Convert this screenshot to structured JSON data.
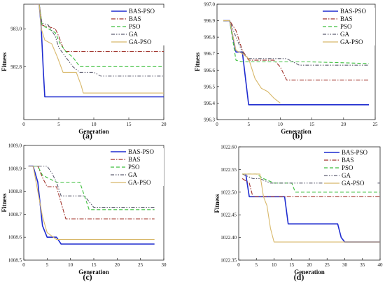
{
  "series_names": [
    "BAS-PSO",
    "BAS",
    "PSO",
    "GA",
    "GA-PSO"
  ],
  "series_styles": [
    {
      "name": "BAS-PSO",
      "color": "#1f2ccf",
      "dash": "",
      "width": 1.6
    },
    {
      "name": "BAS",
      "color": "#a0322a",
      "dash": "6,2,1.5,2",
      "width": 1.1
    },
    {
      "name": "PSO",
      "color": "#3dbf3d",
      "dash": "5,3",
      "width": 1.1
    },
    {
      "name": "GA",
      "color": "#5e5e70",
      "dash": "5,2,1.5,2,1.5,2",
      "width": 1.1
    },
    {
      "name": "GA-PSO",
      "color": "#d8b86a",
      "dash": "",
      "width": 1.1
    }
  ],
  "chart_data": [
    {
      "type": "line",
      "label": "(a)",
      "xlabel": "Generation",
      "ylabel": "Fitness",
      "xlim": [
        0,
        20
      ],
      "ylim": [
        982.52,
        983.13
      ],
      "xticks": [
        0,
        5,
        10,
        15,
        20
      ],
      "yticks": [
        {
          "v": 983.0,
          "t": "983.0"
        },
        {
          "v": 982.8,
          "t": "982.8"
        }
      ],
      "legend": "top-right",
      "series": [
        {
          "name": "BAS-PSO",
          "points": [
            [
              1.5,
              983.13
            ],
            [
              2.2,
              983.13
            ],
            [
              2.5,
              983.0
            ],
            [
              2.8,
              982.77
            ],
            [
              3.0,
              982.64
            ],
            [
              20,
              982.64
            ]
          ]
        },
        {
          "name": "BAS",
          "points": [
            [
              1.5,
              983.13
            ],
            [
              2.2,
              983.13
            ],
            [
              2.6,
              983.02
            ],
            [
              3.6,
              983.01
            ],
            [
              4.5,
              983.0
            ],
            [
              5.0,
              982.96
            ],
            [
              5.6,
              982.9
            ],
            [
              6.0,
              982.88
            ],
            [
              20,
              982.88
            ]
          ]
        },
        {
          "name": "PSO",
          "points": [
            [
              1.5,
              983.13
            ],
            [
              2.2,
              983.13
            ],
            [
              2.6,
              983.02
            ],
            [
              3.5,
              983.0
            ],
            [
              4.5,
              982.98
            ],
            [
              5.2,
              982.92
            ],
            [
              6.0,
              982.88
            ],
            [
              7.0,
              982.85
            ],
            [
              8.0,
              982.8
            ],
            [
              20,
              982.8
            ]
          ]
        },
        {
          "name": "GA",
          "points": [
            [
              1.5,
              983.13
            ],
            [
              2.2,
              983.13
            ],
            [
              2.6,
              983.03
            ],
            [
              3.5,
              983.02
            ],
            [
              4.5,
              982.96
            ],
            [
              5.0,
              982.9
            ],
            [
              5.8,
              982.86
            ],
            [
              7.0,
              982.8
            ],
            [
              8.0,
              982.77
            ],
            [
              10.0,
              982.77
            ],
            [
              11.0,
              982.75
            ],
            [
              20,
              982.75
            ]
          ]
        },
        {
          "name": "GA-PSO",
          "points": [
            [
              1.5,
              983.13
            ],
            [
              2.2,
              983.13
            ],
            [
              2.5,
              983.0
            ],
            [
              3.0,
              982.94
            ],
            [
              4.0,
              982.92
            ],
            [
              4.8,
              982.85
            ],
            [
              5.6,
              982.77
            ],
            [
              7.5,
              982.77
            ],
            [
              8.2,
              982.7
            ],
            [
              8.5,
              982.66
            ],
            [
              20,
              982.66
            ]
          ]
        }
      ]
    },
    {
      "type": "line",
      "label": "(b)",
      "xlabel": "Generation",
      "ylabel": "Fitness",
      "xlim": [
        0,
        25
      ],
      "ylim": [
        996.3,
        997.0
      ],
      "xticks": [
        0,
        5,
        10,
        15,
        20,
        25
      ],
      "yticks": [
        {
          "v": 996.3,
          "t": "996.3"
        },
        {
          "v": 996.4,
          "t": "996.4"
        },
        {
          "v": 996.5,
          "t": "996.5"
        },
        {
          "v": 996.6,
          "t": "996.6"
        },
        {
          "v": 996.7,
          "t": "996.7"
        },
        {
          "v": 996.8,
          "t": "996.8"
        },
        {
          "v": 996.9,
          "t": "996.9"
        },
        {
          "v": 997.0,
          "t": "997.0"
        }
      ],
      "legend": "top-right",
      "series": [
        {
          "name": "BAS-PSO",
          "points": [
            [
              1,
              996.9
            ],
            [
              2,
              996.9
            ],
            [
              3,
              996.71
            ],
            [
              4,
              996.71
            ],
            [
              5,
              996.39
            ],
            [
              24,
              996.39
            ]
          ]
        },
        {
          "name": "BAS",
          "points": [
            [
              1,
              996.9
            ],
            [
              2,
              996.9
            ],
            [
              3,
              996.84
            ],
            [
              4,
              996.72
            ],
            [
              5,
              996.66
            ],
            [
              9,
              996.66
            ],
            [
              10,
              996.62
            ],
            [
              11,
              996.54
            ],
            [
              24,
              996.54
            ]
          ]
        },
        {
          "name": "PSO",
          "points": [
            [
              1,
              996.9
            ],
            [
              2,
              996.9
            ],
            [
              3,
              996.66
            ],
            [
              4,
              996.65
            ],
            [
              11,
              996.65
            ],
            [
              15,
              996.65
            ],
            [
              24,
              996.64
            ]
          ]
        },
        {
          "name": "GA",
          "points": [
            [
              1,
              996.9
            ],
            [
              2,
              996.9
            ],
            [
              3,
              996.8
            ],
            [
              4,
              996.71
            ],
            [
              5,
              996.67
            ],
            [
              11,
              996.67
            ],
            [
              13,
              996.63
            ],
            [
              24,
              996.63
            ]
          ]
        },
        {
          "name": "GA-PSO",
          "points": [
            [
              1,
              996.9
            ],
            [
              2,
              996.9
            ],
            [
              3,
              996.72
            ],
            [
              4,
              996.7
            ],
            [
              5,
              996.67
            ],
            [
              6,
              996.55
            ],
            [
              7,
              996.49
            ],
            [
              8,
              996.47
            ],
            [
              9,
              996.43
            ],
            [
              10,
              996.4
            ]
          ]
        }
      ]
    },
    {
      "type": "line",
      "label": "(c)",
      "xlabel": "Generation",
      "ylabel": "Fitness",
      "xlim": [
        0,
        30
      ],
      "ylim": [
        1008.5,
        1009.0
      ],
      "xticks": [
        0,
        5,
        10,
        15,
        20,
        25,
        30
      ],
      "yticks": [
        {
          "v": 1008.5,
          "t": "1008.5"
        },
        {
          "v": 1008.6,
          "t": "1008.6"
        },
        {
          "v": 1008.7,
          "t": "1008.7"
        },
        {
          "v": 1008.8,
          "t": "1008.8"
        },
        {
          "v": 1008.9,
          "t": "1008.9"
        },
        {
          "v": 1009.0,
          "t": "1009.0"
        }
      ],
      "legend": "top-right",
      "series": [
        {
          "name": "BAS-PSO",
          "points": [
            [
              1,
              1008.91
            ],
            [
              2,
              1008.91
            ],
            [
              3,
              1008.84
            ],
            [
              4,
              1008.65
            ],
            [
              5,
              1008.6
            ],
            [
              7,
              1008.6
            ],
            [
              8,
              1008.57
            ],
            [
              28,
              1008.57
            ]
          ]
        },
        {
          "name": "BAS",
          "points": [
            [
              1,
              1008.91
            ],
            [
              3,
              1008.91
            ],
            [
              4,
              1008.86
            ],
            [
              5,
              1008.82
            ],
            [
              7,
              1008.82
            ],
            [
              8,
              1008.75
            ],
            [
              9,
              1008.68
            ],
            [
              28,
              1008.68
            ]
          ]
        },
        {
          "name": "PSO",
          "points": [
            [
              1,
              1008.91
            ],
            [
              3,
              1008.91
            ],
            [
              4,
              1008.87
            ],
            [
              5,
              1008.86
            ],
            [
              7,
              1008.84
            ],
            [
              12,
              1008.84
            ],
            [
              14,
              1008.72
            ],
            [
              28,
              1008.72
            ]
          ]
        },
        {
          "name": "GA",
          "points": [
            [
              1,
              1008.91
            ],
            [
              5,
              1008.91
            ],
            [
              6,
              1008.88
            ],
            [
              7,
              1008.84
            ],
            [
              8,
              1008.78
            ],
            [
              13,
              1008.78
            ],
            [
              15,
              1008.73
            ],
            [
              28,
              1008.73
            ]
          ]
        },
        {
          "name": "GA-PSO",
          "points": [
            [
              1,
              1008.91
            ],
            [
              2,
              1008.91
            ],
            [
              3,
              1008.8
            ],
            [
              4,
              1008.69
            ],
            [
              5,
              1008.62
            ],
            [
              7,
              1008.59
            ],
            [
              28,
              1008.59
            ]
          ]
        }
      ]
    },
    {
      "type": "line",
      "label": "(d)",
      "xlabel": "Generation",
      "ylabel": "Fitness",
      "xlim": [
        0,
        40
      ],
      "ylim": [
        1022.35,
        1022.6
      ],
      "xticks": [
        0,
        5,
        10,
        15,
        20,
        25,
        30,
        35,
        40
      ],
      "yticks": [
        {
          "v": 1022.35,
          "t": "1022.35"
        },
        {
          "v": 1022.4,
          "t": "1022.40"
        },
        {
          "v": 1022.45,
          "t": "1022.45"
        },
        {
          "v": 1022.5,
          "t": "1022.50"
        },
        {
          "v": 1022.55,
          "t": "1022.55"
        },
        {
          "v": 1022.6,
          "t": "1022.60"
        }
      ],
      "legend": "top-right",
      "series": [
        {
          "name": "BAS-PSO",
          "points": [
            [
              2,
              1022.54
            ],
            [
              3,
              1022.49
            ],
            [
              13,
              1022.49
            ],
            [
              14,
              1022.43
            ],
            [
              28,
              1022.43
            ],
            [
              29,
              1022.4
            ],
            [
              30,
              1022.39
            ],
            [
              40,
              1022.39
            ]
          ]
        },
        {
          "name": "BAS",
          "points": [
            [
              1,
              1022.53
            ],
            [
              3,
              1022.52
            ],
            [
              4,
              1022.49
            ],
            [
              40,
              1022.49
            ]
          ]
        },
        {
          "name": "PSO",
          "points": [
            [
              1,
              1022.54
            ],
            [
              5,
              1022.54
            ],
            [
              7,
              1022.53
            ],
            [
              10,
              1022.52
            ],
            [
              15,
              1022.52
            ],
            [
              16,
              1022.5
            ],
            [
              40,
              1022.5
            ]
          ]
        },
        {
          "name": "GA",
          "points": [
            [
              1,
              1022.54
            ],
            [
              4,
              1022.53
            ],
            [
              6,
              1022.53
            ],
            [
              9,
              1022.52
            ],
            [
              40,
              1022.52
            ]
          ]
        },
        {
          "name": "GA-PSO",
          "points": [
            [
              1,
              1022.54
            ],
            [
              6,
              1022.54
            ],
            [
              7,
              1022.49
            ],
            [
              8,
              1022.47
            ],
            [
              9,
              1022.42
            ],
            [
              10,
              1022.39
            ],
            [
              40,
              1022.39
            ]
          ]
        }
      ]
    }
  ]
}
